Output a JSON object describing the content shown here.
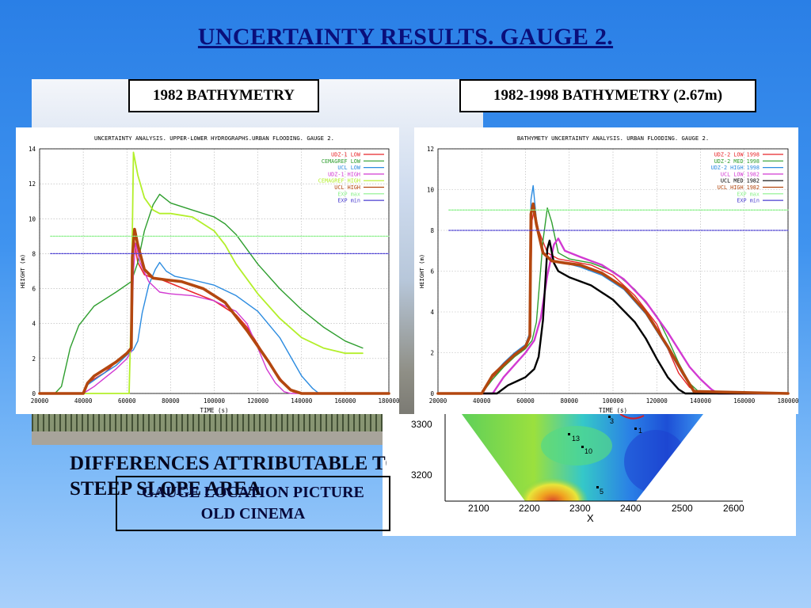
{
  "slide": {
    "title": "UNCERTAINTY RESULTS. GAUGE 2.",
    "label_left": "1982 BATHYMETRY",
    "label_right": "1982-1998 BATHYMETRY (2.67m)",
    "text_line1": "DIFFERENCES ATTRIBUTABLE TO",
    "text_line2": "STEEP SLOPE AREA",
    "gauge_line1": "GAUGE LOCATION PICTURE",
    "gauge_line2": "OLD CINEMA"
  },
  "chart_data": [
    {
      "type": "line",
      "title": "UNCERTAINTY ANALYSIS. UPPER-LOWER HYDROGRAPHS.URBAN FLOODING. GAUGE 2.",
      "xlabel": "TIME (s)",
      "ylabel": "HEIGHT (m)",
      "xlim": [
        20000,
        180000
      ],
      "ylim": [
        0,
        14
      ],
      "xticks": [
        20000,
        40000,
        60000,
        80000,
        100000,
        120000,
        140000,
        160000,
        180000
      ],
      "yticks": [
        0,
        2,
        4,
        6,
        8,
        10,
        12,
        14
      ],
      "grid": true,
      "legend": "top-right",
      "series": [
        {
          "name": "UDZ-1 LOW",
          "color": "#e8262a",
          "width": 1.6,
          "x": [
            20000,
            40000,
            42000,
            50000,
            55000,
            60000,
            62000,
            62500,
            63000,
            65000,
            68000,
            72000,
            76000,
            80000,
            90000,
            100000,
            110000,
            115000,
            120000,
            125000,
            130000,
            133000,
            136000,
            140000,
            145000,
            180000
          ],
          "y": [
            0,
            0,
            0.6,
            1.2,
            1.8,
            2.2,
            2.5,
            7.5,
            9.0,
            7.5,
            6.8,
            6.6,
            6.5,
            6.3,
            5.8,
            5.3,
            4.5,
            3.8,
            2.8,
            1.8,
            0.9,
            0.4,
            0.1,
            0,
            0,
            0
          ]
        },
        {
          "name": "CEMAGREF LOW",
          "color": "#2e9e2e",
          "width": 1.4,
          "x": [
            20000,
            27000,
            30000,
            34000,
            38000,
            45000,
            55000,
            62000,
            65000,
            68000,
            72000,
            75000,
            80000,
            90000,
            100000,
            105000,
            110000,
            120000,
            130000,
            140000,
            150000,
            160000,
            168000
          ],
          "y": [
            0,
            0,
            0.4,
            2.6,
            3.9,
            5.0,
            5.8,
            6.4,
            7.5,
            9.3,
            10.8,
            11.4,
            10.9,
            10.5,
            10.1,
            9.7,
            9.1,
            7.4,
            6.0,
            4.8,
            3.8,
            3.0,
            2.6
          ]
        },
        {
          "name": "UCL LOW",
          "color": "#2b8be0",
          "width": 1.4,
          "x": [
            20000,
            40000,
            42000,
            50000,
            55000,
            60000,
            63000,
            65000,
            67000,
            70000,
            73000,
            75000,
            78000,
            82000,
            90000,
            100000,
            110000,
            120000,
            130000,
            135000,
            140000,
            145000,
            148000,
            180000
          ],
          "y": [
            0,
            0,
            0.5,
            1.2,
            1.6,
            2.2,
            2.5,
            3.0,
            4.6,
            6.2,
            7.1,
            7.5,
            7.0,
            6.7,
            6.5,
            6.2,
            5.6,
            4.7,
            3.2,
            2.1,
            1.0,
            0.3,
            0,
            0
          ]
        },
        {
          "name": "UDZ-1 HIGH",
          "color": "#d23ad2",
          "width": 1.4,
          "x": [
            20000,
            40000,
            45000,
            50000,
            55000,
            60000,
            62000,
            63000,
            64000,
            66000,
            70000,
            75000,
            80000,
            90000,
            100000,
            110000,
            115000,
            120000,
            124000,
            128000,
            132000,
            135000,
            180000
          ],
          "y": [
            0,
            0,
            0.4,
            0.9,
            1.4,
            2.0,
            2.4,
            7.0,
            8.6,
            7.5,
            6.4,
            5.8,
            5.7,
            5.6,
            5.3,
            4.7,
            4.0,
            2.6,
            1.4,
            0.6,
            0.1,
            0,
            0
          ]
        },
        {
          "name": "CEMAGREF HIGH",
          "color": "#b3ef2a",
          "width": 1.8,
          "x": [
            20000,
            60000,
            61000,
            62000,
            63000,
            65000,
            68000,
            72000,
            75000,
            80000,
            90000,
            100000,
            105000,
            110000,
            120000,
            130000,
            140000,
            150000,
            160000,
            168000
          ],
          "y": [
            0,
            0,
            0,
            5.0,
            13.8,
            12.5,
            11.2,
            10.5,
            10.3,
            10.3,
            10.1,
            9.3,
            8.5,
            7.4,
            5.7,
            4.3,
            3.2,
            2.6,
            2.3,
            2.3
          ]
        },
        {
          "name": "UCL HIGH",
          "color": "#b3470f",
          "width": 3.6,
          "x": [
            20000,
            40000,
            42000,
            45000,
            50000,
            55000,
            60000,
            62000,
            62500,
            63500,
            65000,
            68000,
            72000,
            78000,
            85000,
            95000,
            105000,
            115000,
            125000,
            130000,
            135000,
            140000,
            180000
          ],
          "y": [
            0,
            0,
            0.6,
            1.0,
            1.4,
            1.8,
            2.3,
            2.6,
            7.8,
            9.4,
            8.5,
            7.1,
            6.6,
            6.5,
            6.4,
            6.0,
            5.2,
            3.6,
            1.8,
            0.8,
            0.2,
            0,
            0
          ]
        },
        {
          "name": "EXP max",
          "color": "#8cf08c",
          "width": 1.3,
          "dashed": true,
          "x": [
            25000,
            180000
          ],
          "y": [
            9.0,
            9.0
          ]
        },
        {
          "name": "EXP min",
          "color": "#4b3fd0",
          "width": 1.3,
          "dashed": true,
          "x": [
            25000,
            180000
          ],
          "y": [
            8.0,
            8.0
          ]
        }
      ]
    },
    {
      "type": "line",
      "title": "BATHYMETY UNCERTAINTY ANALYSIS. URBAN FLOODING. GAUGE 2.",
      "xlabel": "TIME (s)",
      "ylabel": "HEIGHT (m)",
      "xlim": [
        20000,
        180000
      ],
      "ylim": [
        0,
        12
      ],
      "xticks": [
        20000,
        40000,
        60000,
        80000,
        100000,
        120000,
        140000,
        160000,
        180000
      ],
      "yticks": [
        0,
        2,
        4,
        6,
        8,
        10,
        12
      ],
      "grid": true,
      "legend": "top-right",
      "series": [
        {
          "name": "UDZ-2 LOW 1998",
          "color": "#e8262a",
          "width": 1.4,
          "x": [
            20000,
            40000,
            45000,
            50000,
            55000,
            60000,
            62000,
            63000,
            64000,
            66000,
            70000,
            75000,
            80000,
            90000,
            100000,
            110000,
            120000,
            125000,
            130000,
            135000,
            140000,
            180000
          ],
          "y": [
            0,
            0,
            0.8,
            1.3,
            1.8,
            2.2,
            2.8,
            8.5,
            9.0,
            8.0,
            6.9,
            6.6,
            6.5,
            6.3,
            5.8,
            4.8,
            3.4,
            2.2,
            1.0,
            0.3,
            0,
            0
          ]
        },
        {
          "name": "UDZ-2 MED 1998",
          "color": "#2e9e2e",
          "width": 1.4,
          "x": [
            20000,
            40000,
            45000,
            50000,
            55000,
            60000,
            63000,
            65000,
            68000,
            70000,
            72000,
            75000,
            80000,
            90000,
            100000,
            110000,
            120000,
            125000,
            130000,
            135000,
            140000,
            180000
          ],
          "y": [
            0,
            0,
            0.7,
            1.3,
            1.8,
            2.2,
            2.6,
            3.5,
            7.5,
            9.1,
            8.4,
            6.9,
            6.6,
            6.4,
            6.0,
            5.1,
            3.8,
            2.7,
            1.5,
            0.5,
            0,
            0
          ]
        },
        {
          "name": "UDZ-2 HIGH 1998",
          "color": "#2b8be0",
          "width": 1.4,
          "x": [
            20000,
            40000,
            45000,
            50000,
            55000,
            60000,
            62000,
            62500,
            63500,
            65000,
            68000,
            72000,
            78000,
            85000,
            95000,
            105000,
            115000,
            125000,
            132000,
            138000,
            180000
          ],
          "y": [
            0,
            0,
            0.9,
            1.5,
            2.0,
            2.4,
            3.0,
            9.5,
            10.2,
            8.5,
            6.9,
            6.5,
            6.4,
            6.2,
            5.8,
            5.1,
            3.9,
            2.2,
            0.9,
            0,
            0
          ]
        },
        {
          "name": "UCL LOW 1982",
          "color": "#d23ad2",
          "width": 2.4,
          "x": [
            20000,
            45000,
            50000,
            55000,
            60000,
            64000,
            67000,
            70000,
            73000,
            75000,
            78000,
            85000,
            95000,
            105000,
            115000,
            125000,
            135000,
            140000,
            145000,
            148000,
            180000
          ],
          "y": [
            0,
            0,
            0.8,
            1.4,
            2.0,
            2.6,
            3.7,
            5.8,
            7.3,
            7.6,
            7.0,
            6.7,
            6.3,
            5.6,
            4.5,
            3.0,
            1.3,
            0.7,
            0.2,
            0,
            0
          ]
        },
        {
          "name": "UCL MED 1982",
          "color": "#000000",
          "width": 2.4,
          "x": [
            20000,
            47000,
            52000,
            56000,
            60000,
            64000,
            66000,
            68000,
            70000,
            71000,
            73000,
            75000,
            80000,
            90000,
            100000,
            110000,
            115000,
            120000,
            125000,
            130000,
            133000,
            180000
          ],
          "y": [
            0,
            0,
            0.4,
            0.6,
            0.8,
            1.2,
            1.8,
            3.6,
            7.1,
            7.5,
            6.4,
            6.0,
            5.7,
            5.3,
            4.6,
            3.5,
            2.7,
            1.7,
            0.8,
            0.2,
            0,
            0
          ]
        },
        {
          "name": "UCL HIGH 1982",
          "color": "#b3470f",
          "width": 3.6,
          "x": [
            20000,
            40000,
            45000,
            50000,
            55000,
            60000,
            62000,
            62500,
            63500,
            65000,
            68000,
            72000,
            78000,
            85000,
            95000,
            105000,
            115000,
            125000,
            132000,
            137000,
            180000
          ],
          "y": [
            0,
            0,
            0.9,
            1.4,
            1.9,
            2.3,
            2.8,
            8.8,
            9.3,
            8.3,
            6.9,
            6.5,
            6.4,
            6.3,
            5.9,
            5.2,
            4.0,
            2.3,
            1.0,
            0.1,
            0
          ]
        },
        {
          "name": "EXP max",
          "color": "#8cf08c",
          "width": 1.3,
          "dashed": true,
          "x": [
            25000,
            180000
          ],
          "y": [
            9.0,
            9.0
          ]
        },
        {
          "name": "EXP min",
          "color": "#4b3fd0",
          "width": 1.3,
          "dashed": true,
          "x": [
            25000,
            180000
          ],
          "y": [
            8.0,
            8.0
          ]
        }
      ]
    }
  ],
  "map": {
    "xlabel": "X",
    "xticks": [
      "2100",
      "2200",
      "2300",
      "2400",
      "2500",
      "2600"
    ],
    "yticks": [
      "3300",
      "3200"
    ],
    "point_labels": [
      "1",
      "3",
      "13",
      "10",
      "5"
    ]
  }
}
